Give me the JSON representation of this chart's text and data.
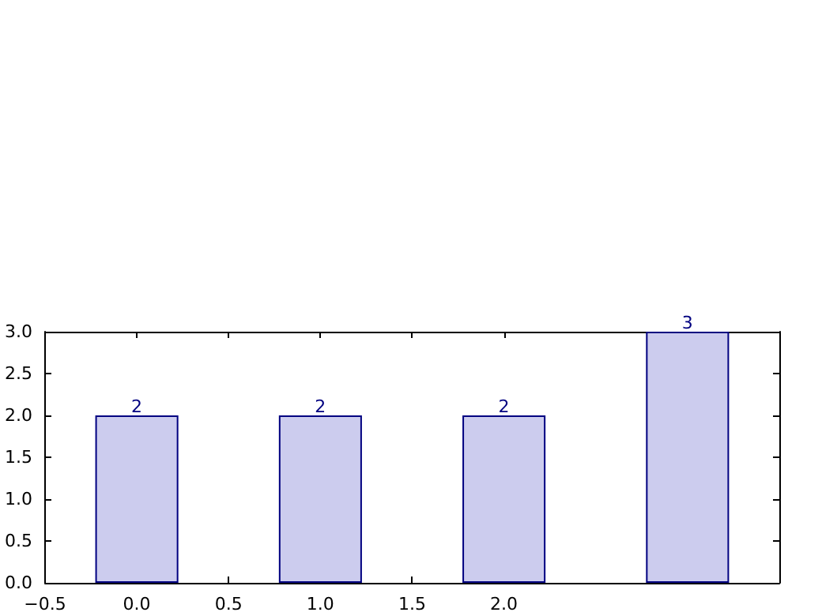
{
  "chart_data": {
    "type": "bar",
    "x": [
      0,
      1,
      2,
      3
    ],
    "values": [
      2,
      2,
      2,
      3
    ],
    "color": "#ccccee",
    "data_labels": true,
    "xlim": [
      -0.5,
      3.5
    ],
    "ylim": [
      0,
      3
    ],
    "xticks": [
      {
        "value": -0.5,
        "label": "−0.5"
      },
      {
        "value": 0,
        "label": "0.0"
      },
      {
        "value": 0.5,
        "label": "0.5"
      },
      {
        "value": 1,
        "label": "1.0"
      },
      {
        "value": 1.5,
        "label": "1.5"
      },
      {
        "value": 2,
        "label": "2.0"
      }
    ],
    "yticks": [
      {
        "value": 0,
        "label": "0.0"
      },
      {
        "value": 0.5,
        "label": "0.5"
      },
      {
        "value": 1,
        "label": "1.0"
      },
      {
        "value": 1.5,
        "label": "1.5"
      },
      {
        "value": 2,
        "label": "2.0"
      },
      {
        "value": 2.5,
        "label": "2.5"
      },
      {
        "value": 3,
        "label": "3.0"
      }
    ],
    "grid": false
  }
}
